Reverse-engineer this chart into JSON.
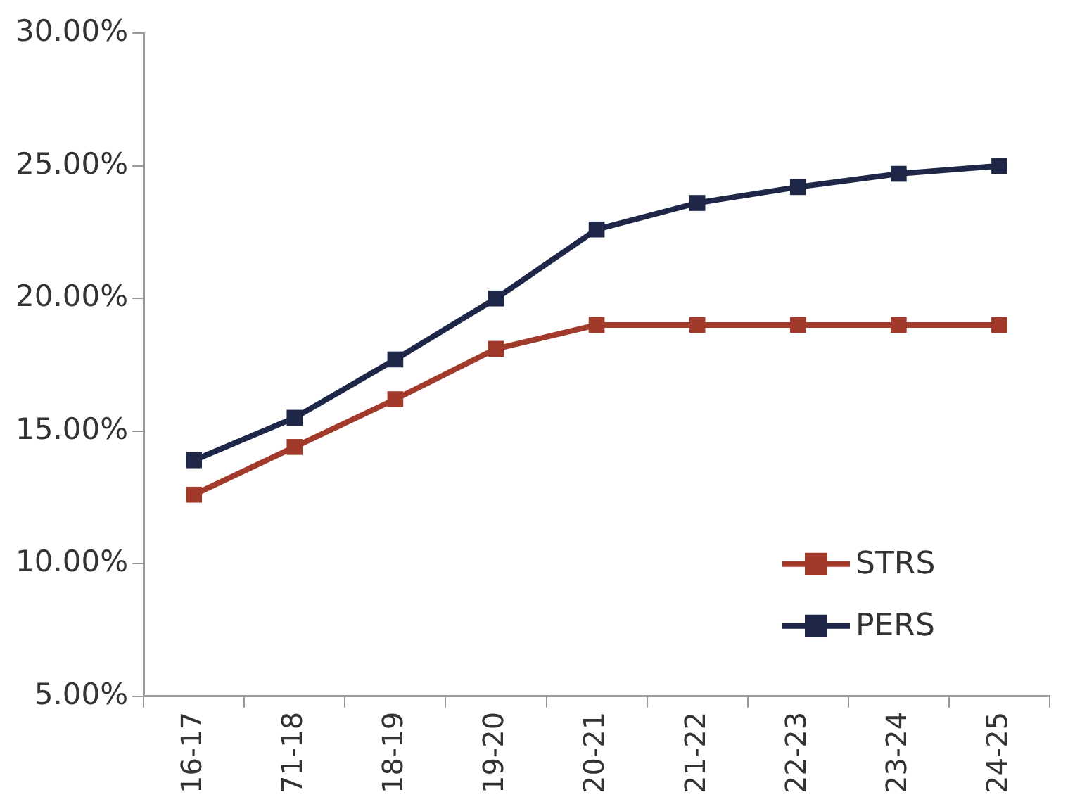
{
  "chart_data": {
    "type": "line",
    "categories": [
      "16-17",
      "71-18",
      "18-19",
      "19-20",
      "20-21",
      "21-22",
      "22-23",
      "23-24",
      "24-25"
    ],
    "series": [
      {
        "name": "STRS",
        "color": "#a23a2c",
        "values": [
          12.6,
          14.4,
          16.2,
          18.1,
          19.0,
          19.0,
          19.0,
          19.0,
          19.0
        ]
      },
      {
        "name": "PERS",
        "color": "#1e2748",
        "values": [
          13.9,
          15.5,
          17.7,
          20.0,
          22.6,
          23.6,
          24.2,
          24.7,
          25.0
        ]
      }
    ],
    "ylim": [
      5,
      30
    ],
    "yticks": [
      {
        "value": 5,
        "label": "5.00%"
      },
      {
        "value": 10,
        "label": "10.00%"
      },
      {
        "value": 15,
        "label": "15.00%"
      },
      {
        "value": 20,
        "label": "20.00%"
      },
      {
        "value": 25,
        "label": "25.00%"
      },
      {
        "value": 30,
        "label": "30.00%"
      }
    ],
    "grid": false,
    "legend": "bottom right",
    "marker": "square",
    "line_style": "solid"
  }
}
